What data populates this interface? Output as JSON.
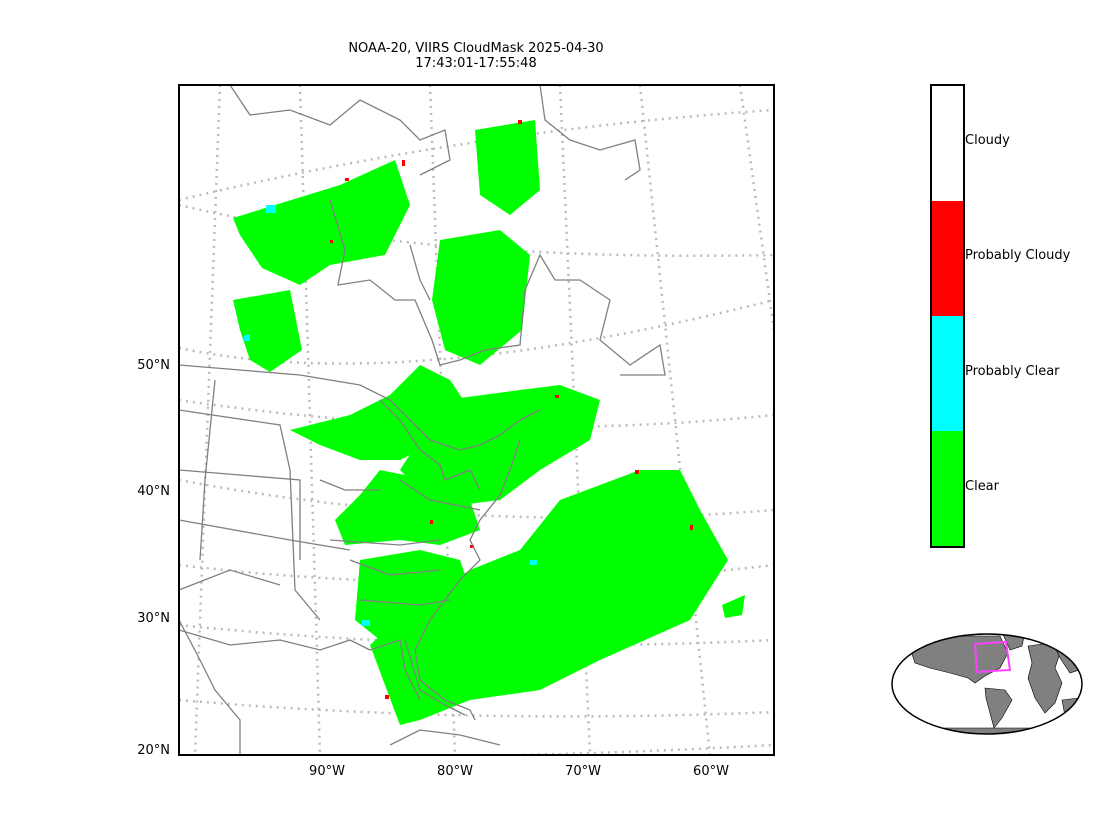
{
  "title": {
    "line1": "NOAA-20, VIIRS CloudMask 2025-04-30",
    "line2": "17:43:01-17:55:48"
  },
  "lat_labels": [
    "50°N",
    "40°N",
    "30°N",
    "20°N"
  ],
  "lon_labels": [
    "90°W",
    "80°W",
    "70°W",
    "60°W"
  ],
  "legend": {
    "items": [
      {
        "label": "Cloudy",
        "color": "#ffffff"
      },
      {
        "label": "Probably Cloudy",
        "color": "#ff0000"
      },
      {
        "label": "Probably Clear",
        "color": "#00ffff"
      },
      {
        "label": "Clear",
        "color": "#00ff00"
      }
    ]
  },
  "colors": {
    "clear": "#00ff00",
    "probably_clear": "#00ffff",
    "probably_cloudy": "#ff0000",
    "coastline": "#808080",
    "graticule": "#bbbbbb",
    "inset_box": "#ff40ff",
    "inset_land": "#808080"
  }
}
